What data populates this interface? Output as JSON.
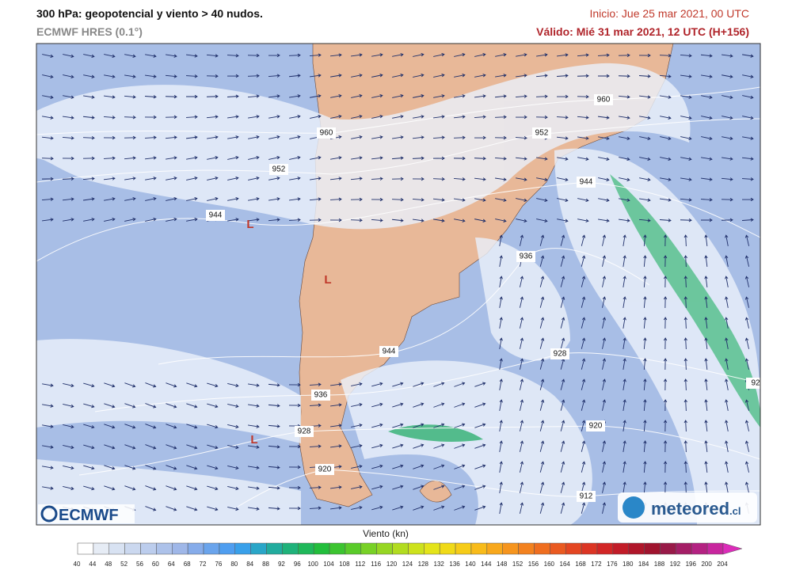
{
  "header": {
    "title": "300 hPa: geopotencial y viento > 40 nudos.",
    "model": "ECMWF HRES (0.1°)",
    "init": "Inicio: Jue 25 mar 2021, 00 UTC",
    "valid": "Válido: Mié 31 mar 2021, 12 UTC (H+156)"
  },
  "map": {
    "contour_labels": [
      "960",
      "952",
      "944",
      "960",
      "952",
      "944",
      "936",
      "944",
      "936",
      "928",
      "920",
      "928",
      "920",
      "912",
      "92"
    ],
    "lows": [
      "L",
      "L",
      "L"
    ]
  },
  "legend": {
    "title": "Viento (kn)",
    "ticks": [
      40,
      44,
      48,
      52,
      56,
      60,
      64,
      68,
      72,
      76,
      80,
      84,
      88,
      92,
      96,
      100,
      104,
      108,
      112,
      116,
      120,
      124,
      128,
      132,
      136,
      140,
      144,
      148,
      152,
      156,
      160,
      164,
      168,
      172,
      176,
      180,
      184,
      188,
      192,
      196,
      200,
      204
    ],
    "colors": [
      "#ffffff",
      "#e6ecf5",
      "#d8e2f2",
      "#cbd8ef",
      "#bccded",
      "#adc2ea",
      "#9fb7e8",
      "#86acea",
      "#6aa4ec",
      "#4f9ef0",
      "#39a0ea",
      "#2aa6c8",
      "#22ac9e",
      "#1fb27a",
      "#1fb85a",
      "#22be3c",
      "#3cc430",
      "#5acb2a",
      "#78d126",
      "#96d623",
      "#b2dc20",
      "#cde21d",
      "#e4e41a",
      "#f0da18",
      "#f6cc18",
      "#f8bb1a",
      "#f8a81c",
      "#f6951e",
      "#f3821f",
      "#ef6e20",
      "#ea5a21",
      "#e44622",
      "#dc3524",
      "#d22626",
      "#c21c28",
      "#b0162a",
      "#a0142e",
      "#981a48",
      "#a41e66",
      "#b42282",
      "#c8269e",
      "#dc2cba"
    ]
  },
  "logos": {
    "ecmwf": "ECMWF",
    "meteored": "meteored",
    "meteored_suffix": ".cl"
  }
}
